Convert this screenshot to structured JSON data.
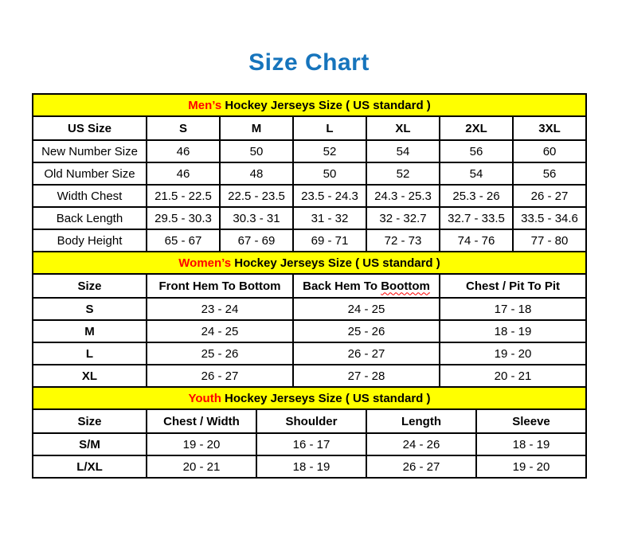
{
  "page": {
    "title": "Size Chart"
  },
  "colors": {
    "title_blue": "#1674BC",
    "section_red": "#FF0000",
    "section_bg_yellow": "#FFFF00",
    "border_black": "#000000"
  },
  "tables": [
    {
      "id": "mens",
      "section_header": {
        "highlight": "Men’s",
        "text": " Hockey Jerseys Size ( US standard )"
      },
      "columns": [
        "US Size",
        "S",
        "M",
        "L",
        "XL",
        "2XL",
        "3XL"
      ],
      "rows": [
        [
          "New Number Size",
          "46",
          "50",
          "52",
          "54",
          "56",
          "60"
        ],
        [
          "Old Number Size",
          "46",
          "48",
          "50",
          "52",
          "54",
          "56"
        ],
        [
          "Width Chest",
          "21.5 - 22.5",
          "22.5 - 23.5",
          "23.5 - 24.3",
          "24.3 - 25.3",
          "25.3 - 26",
          "26 - 27"
        ],
        [
          "Back Length",
          "29.5 - 30.3",
          "30.3 - 31",
          "31 - 32",
          "32 - 32.7",
          "32.7 - 33.5",
          "33.5 - 34.6"
        ],
        [
          "Body Height",
          "65 - 67",
          "67 - 69",
          "69 - 71",
          "72 - 73",
          "74 - 76",
          "77 - 80"
        ]
      ]
    },
    {
      "id": "womens",
      "section_header": {
        "highlight": "Women’s",
        "text": " Hockey Jerseys Size ( US standard )"
      },
      "columns": [
        "Size",
        "Front Hem To Bottom",
        {
          "label": "Back Hem To Boottom",
          "wavy": "Boottom"
        },
        "Chest / Pit To Pit"
      ],
      "rows": [
        [
          "S",
          "23 - 24",
          "24 - 25",
          "17 - 18"
        ],
        [
          "M",
          "24 - 25",
          "25 - 26",
          "18 - 19"
        ],
        [
          "L",
          "25 - 26",
          "26 - 27",
          "19 - 20"
        ],
        [
          "XL",
          "26 - 27",
          "27 - 28",
          "20 - 21"
        ]
      ]
    },
    {
      "id": "youth",
      "section_header": {
        "highlight": "Youth",
        "text": " Hockey Jerseys Size ( US standard )"
      },
      "columns": [
        "Size",
        "Chest / Width",
        "Shoulder",
        "Length",
        "Sleeve"
      ],
      "rows": [
        [
          "S/M",
          "19 - 20",
          "16 - 17",
          "24 - 26",
          "18 - 19"
        ],
        [
          "L/XL",
          "20 - 21",
          "18 - 19",
          "26 - 27",
          "19 - 20"
        ]
      ]
    }
  ]
}
